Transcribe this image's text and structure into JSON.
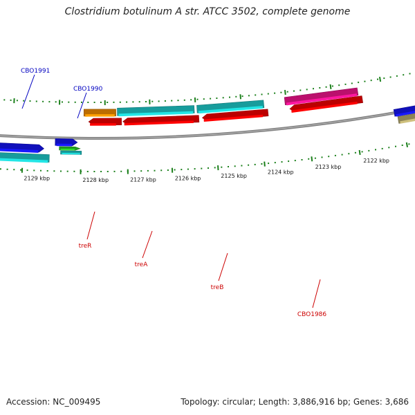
{
  "title": "Clostridium botulinum A str. ATCC 3502, complete genome",
  "footer": {
    "accession": "Accession: NC_009495",
    "stats": "Topology: circular; Length: 3,886,916 bp; Genes: 3,686"
  },
  "colors": {
    "backbone": "#808080",
    "ticks": "#1a7f1a",
    "top_labels": "#0000c0",
    "bottom_labels": "#cc0000",
    "cyan": "#1ec8c8",
    "blue": "#1515f0",
    "red": "#f00000",
    "orange": "#f08c00",
    "green": "#28c828",
    "magenta": "#f0148c",
    "olive": "#b4a86e"
  },
  "scale_labels": [
    "2129 kbp",
    "2128 kbp",
    "2127 kbp",
    "2126 kbp",
    "2125 kbp",
    "2124 kbp",
    "2123 kbp",
    "2122 kbp"
  ],
  "gene_labels": [
    {
      "name": "gene-label-cbo1991",
      "text": "CBO1991",
      "strand": "top"
    },
    {
      "name": "gene-label-cbo1990",
      "text": "CBO1990",
      "strand": "top"
    },
    {
      "name": "gene-label-trer",
      "text": "treR",
      "strand": "bottom"
    },
    {
      "name": "gene-label-trea",
      "text": "treA",
      "strand": "bottom"
    },
    {
      "name": "gene-label-treb",
      "text": "treB",
      "strand": "bottom"
    },
    {
      "name": "gene-label-cbo1986",
      "text": "CBO1986",
      "strand": "bottom"
    }
  ]
}
